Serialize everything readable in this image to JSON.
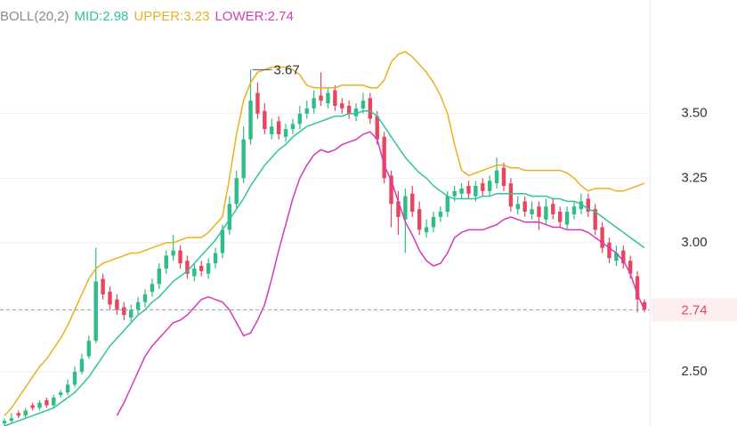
{
  "chart_data": {
    "type": "candlestick",
    "indicator_label": "BOLL(20,2)",
    "colors": {
      "up": "#2ebd85",
      "down": "#e8455f",
      "indicator": "#8a8a8a",
      "axis_text": "#333333",
      "grid": "#efefef",
      "price_line": "#9a9a9a"
    },
    "ylim": [
      2.29,
      3.94
    ],
    "yticks": [
      {
        "value": 2.5,
        "label": "2.50"
      },
      {
        "value": 3.0,
        "label": "3.00"
      },
      {
        "value": 3.25,
        "label": "3.25"
      },
      {
        "value": 3.5,
        "label": "3.50"
      }
    ],
    "grid": true,
    "open": [
      2.3,
      2.31,
      2.34,
      2.33,
      2.37,
      2.36,
      2.39,
      2.37,
      2.41,
      2.42,
      2.45,
      2.5,
      2.56,
      2.62,
      2.86,
      2.81,
      2.78,
      2.75,
      2.71,
      2.74,
      2.77,
      2.81,
      2.84,
      2.9,
      2.95,
      2.97,
      2.93,
      2.87,
      2.91,
      2.88,
      2.92,
      2.96,
      3.05,
      3.15,
      3.25,
      3.4,
      3.58,
      3.51,
      3.42,
      3.47,
      3.41,
      3.44,
      3.46,
      3.5,
      3.52,
      3.57,
      3.54,
      3.59,
      3.54,
      3.53,
      3.49,
      3.52,
      3.56,
      3.49,
      3.41,
      3.26,
      3.16,
      3.09,
      3.19,
      3.13,
      3.04,
      3.06,
      3.1,
      3.12,
      3.18,
      3.19,
      3.22,
      3.18,
      3.23,
      3.2,
      3.23,
      3.29,
      3.23,
      3.13,
      3.16,
      3.11,
      3.14,
      3.09,
      3.15,
      3.12,
      3.07,
      3.11,
      3.13,
      3.17,
      3.13,
      3.06,
      3.0,
      2.93,
      2.97,
      2.93,
      2.87,
      2.77
    ],
    "high": [
      2.32,
      2.34,
      2.35,
      2.36,
      2.38,
      2.39,
      2.4,
      2.41,
      2.43,
      2.47,
      2.52,
      2.57,
      2.64,
      2.98,
      2.88,
      2.83,
      2.8,
      2.77,
      2.76,
      2.79,
      2.82,
      2.86,
      2.92,
      2.97,
      3.03,
      2.99,
      2.95,
      2.92,
      2.93,
      2.94,
      2.98,
      3.07,
      3.18,
      3.28,
      3.45,
      3.67,
      3.62,
      3.54,
      3.48,
      3.49,
      3.46,
      3.48,
      3.53,
      3.55,
      3.59,
      3.66,
      3.6,
      3.61,
      3.56,
      3.55,
      3.54,
      3.58,
      3.58,
      3.51,
      3.43,
      3.28,
      3.2,
      3.21,
      3.22,
      3.16,
      3.09,
      3.12,
      3.14,
      3.2,
      3.22,
      3.23,
      3.24,
      3.24,
      3.25,
      3.26,
      3.33,
      3.31,
      3.25,
      3.18,
      3.18,
      3.16,
      3.16,
      3.17,
      3.17,
      3.14,
      3.14,
      3.16,
      3.19,
      3.19,
      3.15,
      3.08,
      3.02,
      2.99,
      2.99,
      2.95,
      2.89,
      2.78
    ],
    "low": [
      2.29,
      2.3,
      2.32,
      2.32,
      2.35,
      2.35,
      2.36,
      2.36,
      2.4,
      2.41,
      2.44,
      2.49,
      2.55,
      2.61,
      2.78,
      2.74,
      2.72,
      2.7,
      2.69,
      2.72,
      2.75,
      2.79,
      2.82,
      2.88,
      2.93,
      2.9,
      2.86,
      2.85,
      2.87,
      2.86,
      2.9,
      2.94,
      3.03,
      3.13,
      3.23,
      3.38,
      3.48,
      3.42,
      3.4,
      3.4,
      3.39,
      3.42,
      3.44,
      3.48,
      3.5,
      3.53,
      3.52,
      3.51,
      3.5,
      3.48,
      3.47,
      3.5,
      3.46,
      3.38,
      3.23,
      3.06,
      3.03,
      2.96,
      3.1,
      3.03,
      3.02,
      3.04,
      3.08,
      3.1,
      3.16,
      3.17,
      3.17,
      3.16,
      3.18,
      3.18,
      3.21,
      3.2,
      3.12,
      3.11,
      3.1,
      3.09,
      3.05,
      3.07,
      3.09,
      3.06,
      3.05,
      3.09,
      3.11,
      3.1,
      3.03,
      2.96,
      2.92,
      2.91,
      2.9,
      2.86,
      2.73,
      2.73
    ],
    "close": [
      2.31,
      2.32,
      2.33,
      2.35,
      2.36,
      2.38,
      2.37,
      2.4,
      2.42,
      2.45,
      2.5,
      2.55,
      2.62,
      2.85,
      2.8,
      2.76,
      2.74,
      2.72,
      2.74,
      2.77,
      2.8,
      2.84,
      2.9,
      2.95,
      2.97,
      2.92,
      2.88,
      2.9,
      2.89,
      2.92,
      2.96,
      3.05,
      3.15,
      3.25,
      3.4,
      3.55,
      3.5,
      3.44,
      3.45,
      3.42,
      3.44,
      3.46,
      3.5,
      3.52,
      3.56,
      3.55,
      3.58,
      3.53,
      3.52,
      3.5,
      3.52,
      3.55,
      3.48,
      3.4,
      3.25,
      3.15,
      3.1,
      3.18,
      3.12,
      3.05,
      3.06,
      3.1,
      3.12,
      3.18,
      3.2,
      3.21,
      3.19,
      3.22,
      3.2,
      3.24,
      3.28,
      3.22,
      3.14,
      3.15,
      3.12,
      3.13,
      3.1,
      3.14,
      3.11,
      3.08,
      3.12,
      3.14,
      3.16,
      3.12,
      3.05,
      2.98,
      2.94,
      2.96,
      2.92,
      2.88,
      2.78,
      2.74
    ],
    "series": [
      {
        "name": "MID:2.98",
        "color": "#2ec4a0",
        "values": [
          2.29,
          2.3,
          2.31,
          2.32,
          2.33,
          2.34,
          2.35,
          2.36,
          2.38,
          2.4,
          2.42,
          2.45,
          2.48,
          2.52,
          2.56,
          2.6,
          2.63,
          2.66,
          2.69,
          2.72,
          2.74,
          2.77,
          2.79,
          2.82,
          2.85,
          2.87,
          2.89,
          2.92,
          2.95,
          2.98,
          3.01,
          3.05,
          3.09,
          3.13,
          3.17,
          3.22,
          3.26,
          3.3,
          3.33,
          3.36,
          3.38,
          3.41,
          3.43,
          3.45,
          3.46,
          3.47,
          3.48,
          3.49,
          3.49,
          3.5,
          3.5,
          3.51,
          3.51,
          3.49,
          3.45,
          3.41,
          3.37,
          3.33,
          3.3,
          3.27,
          3.25,
          3.22,
          3.2,
          3.18,
          3.17,
          3.17,
          3.17,
          3.17,
          3.18,
          3.18,
          3.19,
          3.19,
          3.19,
          3.19,
          3.19,
          3.18,
          3.18,
          3.18,
          3.17,
          3.17,
          3.16,
          3.16,
          3.15,
          3.13,
          3.12,
          3.1,
          3.08,
          3.06,
          3.04,
          3.02,
          3.0,
          2.98
        ]
      },
      {
        "name": "UPPER:3.23",
        "color": "#e8b21e",
        "values": [
          2.33,
          2.36,
          2.4,
          2.44,
          2.48,
          2.52,
          2.55,
          2.59,
          2.63,
          2.68,
          2.74,
          2.8,
          2.86,
          2.9,
          2.92,
          2.93,
          2.94,
          2.95,
          2.96,
          2.96,
          2.97,
          2.98,
          2.99,
          3.0,
          3.0,
          3.01,
          3.02,
          3.02,
          3.02,
          3.04,
          3.07,
          3.1,
          3.25,
          3.42,
          3.55,
          3.62,
          3.66,
          3.67,
          3.68,
          3.68,
          3.68,
          3.67,
          3.65,
          3.61,
          3.6,
          3.6,
          3.6,
          3.6,
          3.61,
          3.61,
          3.61,
          3.61,
          3.6,
          3.6,
          3.63,
          3.7,
          3.73,
          3.74,
          3.72,
          3.69,
          3.66,
          3.62,
          3.57,
          3.5,
          3.38,
          3.28,
          3.26,
          3.27,
          3.28,
          3.29,
          3.3,
          3.3,
          3.29,
          3.29,
          3.28,
          3.28,
          3.28,
          3.28,
          3.28,
          3.28,
          3.27,
          3.25,
          3.22,
          3.2,
          3.21,
          3.21,
          3.21,
          3.2,
          3.2,
          3.21,
          3.22,
          3.23
        ]
      },
      {
        "name": "LOWER:2.74",
        "color": "#d63bb5",
        "values": [
          null,
          null,
          null,
          null,
          null,
          null,
          null,
          null,
          null,
          null,
          null,
          null,
          null,
          null,
          null,
          null,
          2.33,
          2.38,
          2.44,
          2.5,
          2.56,
          2.6,
          2.63,
          2.66,
          2.69,
          2.7,
          2.72,
          2.75,
          2.78,
          2.79,
          2.78,
          2.77,
          2.74,
          2.69,
          2.64,
          2.65,
          2.7,
          2.76,
          2.86,
          2.97,
          3.07,
          3.17,
          3.25,
          3.3,
          3.34,
          3.36,
          3.35,
          3.36,
          3.38,
          3.39,
          3.4,
          3.42,
          3.43,
          3.4,
          3.3,
          3.24,
          3.16,
          3.08,
          3.03,
          2.97,
          2.93,
          2.91,
          2.92,
          2.96,
          3.02,
          3.04,
          3.05,
          3.05,
          3.05,
          3.06,
          3.07,
          3.09,
          3.1,
          3.09,
          3.08,
          3.08,
          3.08,
          3.07,
          3.06,
          3.06,
          3.05,
          3.05,
          3.05,
          3.04,
          3.02,
          3.0,
          2.98,
          2.96,
          2.93,
          2.88,
          2.8,
          2.74
        ]
      }
    ]
  }
}
